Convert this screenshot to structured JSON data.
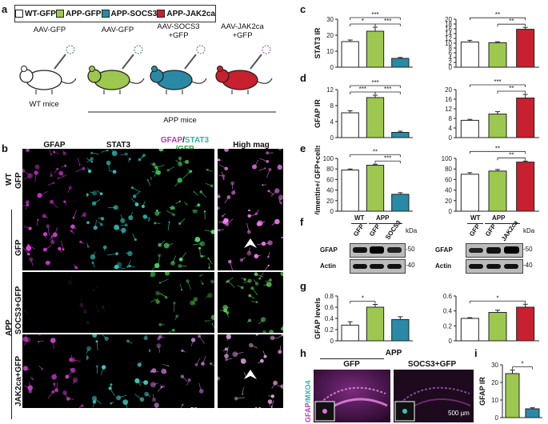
{
  "panels": {
    "a": "a",
    "b": "b",
    "c": "c",
    "d": "d",
    "e": "e",
    "f": "f",
    "g": "g",
    "h": "h",
    "i": "i"
  },
  "legend": [
    {
      "label": "WT-GFP",
      "color": "#ffffff"
    },
    {
      "label": "APP-GFP",
      "color": "#9dc84f"
    },
    {
      "label": "APP-SOCS3",
      "color": "#2a8aa5"
    },
    {
      "label": "APP-JAK2ca",
      "color": "#c8202e"
    }
  ],
  "panel_a": {
    "aav": [
      "AAV-GFP",
      "AAV-GFP",
      "AAV-SOCS3\n+GFP",
      "AAV-JAK2ca\n+GFP"
    ],
    "wt_mice": "WT mice",
    "app_mice": "APP mice"
  },
  "panel_b": {
    "columns": [
      "GFAP",
      "STAT3",
      "GFAP/STAT3/GFP",
      "High mag"
    ],
    "col3_parts": {
      "gfap": "GFAP",
      "slash1": "/",
      "stat3": "STAT3",
      "gfp": "/GFP"
    },
    "group_wt": "WT",
    "group_app": "APP",
    "rows": [
      "GFP",
      "GFP",
      "SOCS3+GFP",
      "JAK2ca+GFP"
    ],
    "scale_main": "50 µm",
    "scale_high": "10 µm"
  },
  "chart_data": [
    {
      "id": "c-left",
      "type": "bar",
      "ylabel": "STAT3 IR",
      "ylim": [
        0,
        30
      ],
      "ticks": [
        0,
        10,
        20,
        30
      ],
      "categories": [
        "WT-GFP",
        "APP-GFP",
        "APP-SOCS3"
      ],
      "values": [
        16,
        22.5,
        5.5
      ],
      "errors": [
        1,
        2.5,
        0.6
      ],
      "colors": [
        "#ffffff",
        "#9dc84f",
        "#2a8aa5"
      ],
      "sig": [
        {
          "from": 0,
          "to": 1,
          "label": "*",
          "level": 0
        },
        {
          "from": 0,
          "to": 2,
          "label": "***",
          "level": 1
        },
        {
          "from": 1,
          "to": 2,
          "label": "***",
          "level": 0
        }
      ]
    },
    {
      "id": "c-right",
      "type": "bar",
      "ylabel": "",
      "ylim": [
        0,
        20
      ],
      "ticks": [
        0,
        2,
        4,
        6,
        8,
        10,
        12,
        14,
        16,
        18,
        20
      ],
      "categories": [
        "WT-GFP",
        "APP-GFP",
        "APP-JAK2ca"
      ],
      "values": [
        10.5,
        10.2,
        15.8
      ],
      "errors": [
        0.7,
        0.4,
        0.8
      ],
      "colors": [
        "#ffffff",
        "#9dc84f",
        "#c8202e"
      ],
      "sig": [
        {
          "from": 0,
          "to": 2,
          "label": "**",
          "level": 1
        },
        {
          "from": 1,
          "to": 2,
          "label": "**",
          "level": 0
        }
      ]
    },
    {
      "id": "d-left",
      "type": "bar",
      "ylabel": "GFAP IR",
      "ylim": [
        0,
        12
      ],
      "ticks": [
        0,
        4,
        8,
        12
      ],
      "categories": [
        "WT-GFP",
        "APP-GFP",
        "APP-SOCS3"
      ],
      "values": [
        6.2,
        10,
        1.3
      ],
      "errors": [
        0.5,
        0.6,
        0.3
      ],
      "colors": [
        "#ffffff",
        "#9dc84f",
        "#2a8aa5"
      ],
      "sig": [
        {
          "from": 0,
          "to": 1,
          "label": "***",
          "level": 0
        },
        {
          "from": 0,
          "to": 2,
          "label": "***",
          "level": 1
        },
        {
          "from": 1,
          "to": 2,
          "label": "***",
          "level": 0
        }
      ]
    },
    {
      "id": "d-right",
      "type": "bar",
      "ylabel": "",
      "ylim": [
        0,
        20
      ],
      "ticks": [
        0,
        4,
        8,
        12,
        16,
        20
      ],
      "categories": [
        "WT-GFP",
        "APP-GFP",
        "APP-JAK2ca"
      ],
      "values": [
        7.2,
        9.8,
        16.5
      ],
      "errors": [
        0.4,
        1,
        1.5
      ],
      "colors": [
        "#ffffff",
        "#9dc84f",
        "#c8202e"
      ],
      "sig": [
        {
          "from": 0,
          "to": 2,
          "label": "***",
          "level": 1
        },
        {
          "from": 1,
          "to": 2,
          "label": "**",
          "level": 0
        }
      ]
    },
    {
      "id": "e-left",
      "type": "bar",
      "ylabel": "% Vimentin+/ GFP+cells",
      "ylim": [
        0,
        100
      ],
      "ticks": [
        0,
        20,
        40,
        60,
        80,
        100
      ],
      "categories": [
        "WT-GFP",
        "APP-GFP",
        "APP-SOCS3"
      ],
      "values": [
        78,
        87,
        32
      ],
      "errors": [
        2,
        2,
        3
      ],
      "colors": [
        "#ffffff",
        "#9dc84f",
        "#2a8aa5"
      ],
      "sig": [
        {
          "from": 0,
          "to": 2,
          "label": "**",
          "level": 1
        },
        {
          "from": 1,
          "to": 2,
          "label": "***",
          "level": 0
        }
      ]
    },
    {
      "id": "e-right",
      "type": "bar",
      "ylabel": "",
      "ylim": [
        0,
        100
      ],
      "ticks": [
        0,
        20,
        40,
        60,
        80,
        100
      ],
      "categories": [
        "WT-GFP",
        "APP-GFP",
        "APP-JAK2ca"
      ],
      "values": [
        70,
        76,
        93
      ],
      "errors": [
        3,
        3,
        2
      ],
      "colors": [
        "#ffffff",
        "#9dc84f",
        "#c8202e"
      ],
      "sig": [
        {
          "from": 0,
          "to": 2,
          "label": "**",
          "level": 1
        },
        {
          "from": 1,
          "to": 2,
          "label": "**",
          "level": 0
        }
      ]
    },
    {
      "id": "g-left",
      "type": "bar",
      "ylabel": "GFAP levels",
      "ylim": [
        0,
        0.8
      ],
      "ticks": [
        0,
        0.2,
        0.4,
        0.6,
        0.8
      ],
      "categories": [
        "WT-GFP",
        "APP-GFP",
        "APP-SOCS3"
      ],
      "values": [
        0.28,
        0.6,
        0.38
      ],
      "errors": [
        0.06,
        0.05,
        0.05
      ],
      "colors": [
        "#ffffff",
        "#9dc84f",
        "#2a8aa5"
      ],
      "sig": [
        {
          "from": 0,
          "to": 1,
          "label": "*",
          "level": 0
        }
      ]
    },
    {
      "id": "g-right",
      "type": "bar",
      "ylabel": "",
      "ylim": [
        0,
        0.6
      ],
      "ticks": [
        0,
        0.2,
        0.4,
        0.6
      ],
      "categories": [
        "WT-GFP",
        "APP-GFP",
        "APP-JAK2ca"
      ],
      "values": [
        0.3,
        0.38,
        0.45
      ],
      "errors": [
        0.01,
        0.03,
        0.04
      ],
      "colors": [
        "#ffffff",
        "#9dc84f",
        "#c8202e"
      ],
      "sig": [
        {
          "from": 0,
          "to": 2,
          "label": "*",
          "level": 0
        }
      ]
    },
    {
      "id": "i",
      "type": "bar",
      "ylabel": "GFAP IR",
      "ylim": [
        0,
        30
      ],
      "ticks": [
        0,
        10,
        20,
        30
      ],
      "categories": [
        "APP-GFP",
        "APP-SOCS3"
      ],
      "values": [
        25,
        5
      ],
      "errors": [
        2,
        0.6
      ],
      "colors": [
        "#9dc84f",
        "#2a8aa5"
      ],
      "sig": [
        {
          "from": 0,
          "to": 1,
          "label": "*",
          "level": 0
        }
      ]
    }
  ],
  "panel_f": {
    "left": {
      "groups": [
        "WT",
        "APP"
      ],
      "lanes": [
        "GFP",
        "GFP",
        "SOCS3"
      ],
      "rows": [
        "GFAP",
        "Actin"
      ],
      "kda": "kDa",
      "marks": [
        "-50",
        "-40"
      ]
    },
    "right": {
      "groups": [
        "WT",
        "APP"
      ],
      "lanes": [
        "GFP",
        "GFP",
        "JAK2ca"
      ],
      "rows": [
        "GFAP",
        "Actin"
      ],
      "kda": "kDa",
      "marks": [
        "-50",
        "-40"
      ]
    }
  },
  "panel_h": {
    "title": "APP",
    "cols": [
      "GFP",
      "SOCS3+GFP"
    ],
    "ylabel_parts": {
      "gfap": "GFAP",
      "mxo4": "/MXO4"
    },
    "scale": "500 µm"
  }
}
